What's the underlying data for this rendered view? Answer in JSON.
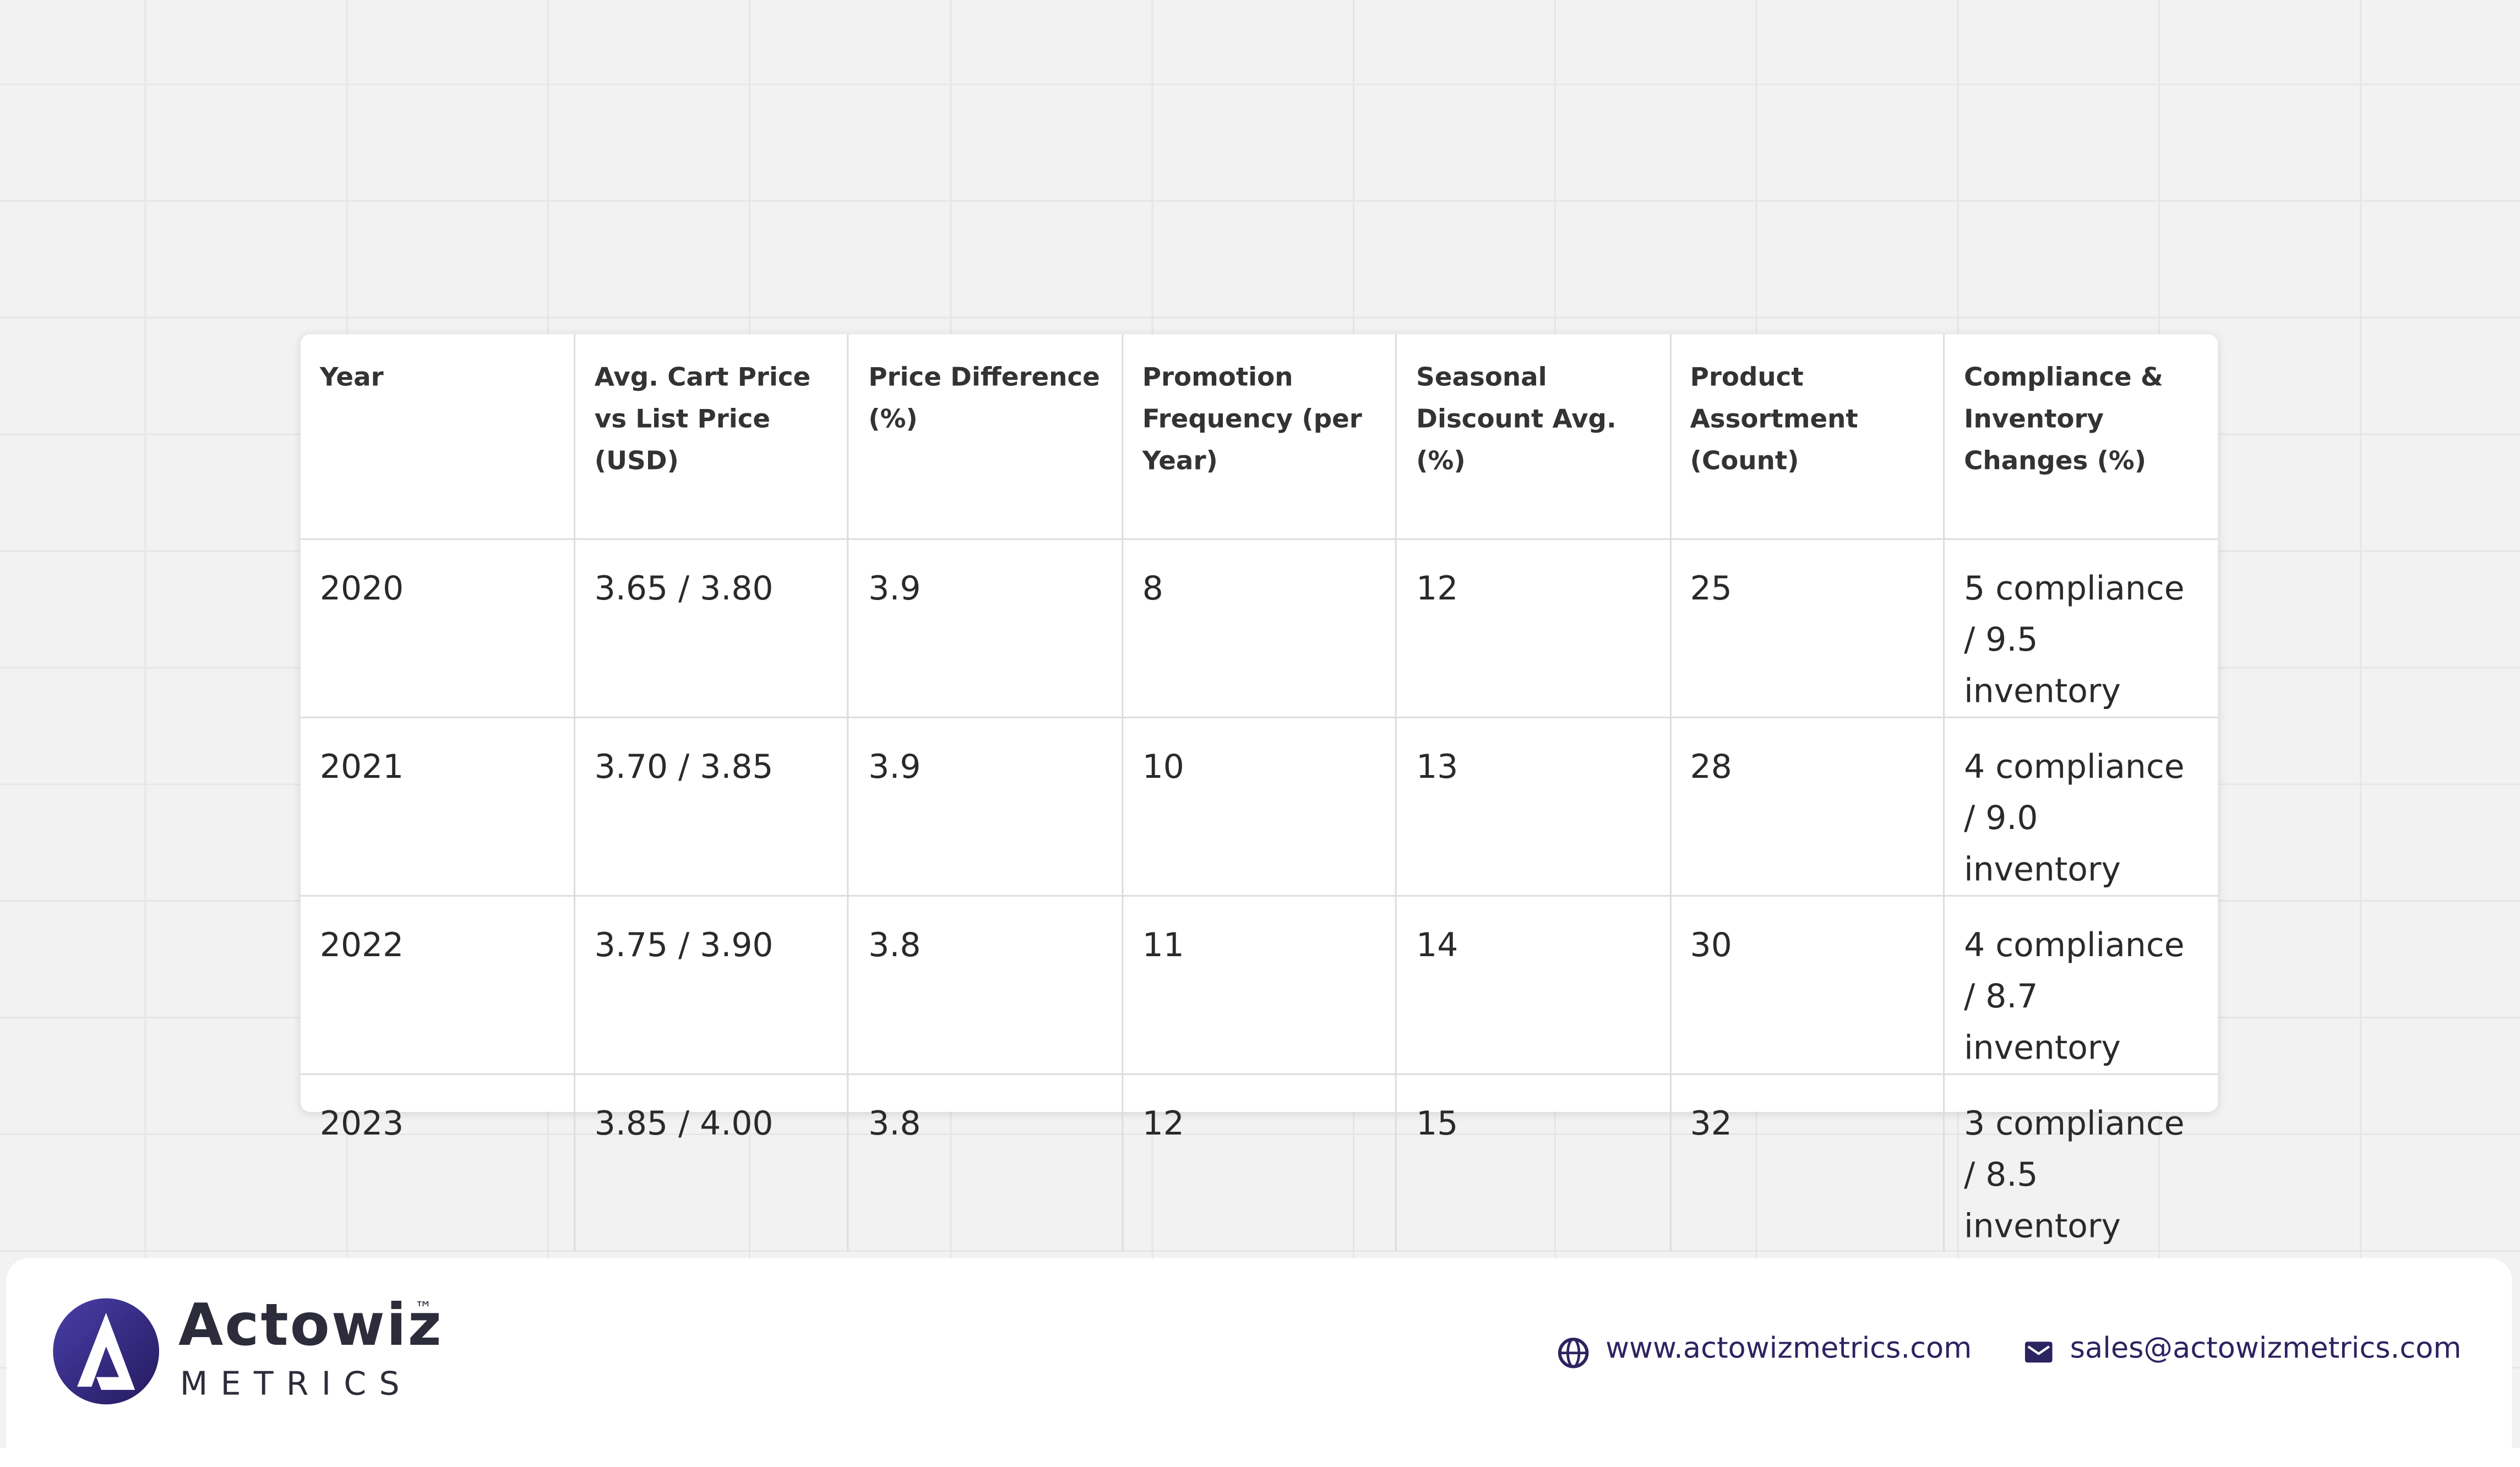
{
  "table": {
    "header": [
      "Year",
      "Avg. Cart Price vs List Price (USD)",
      "Price Difference (%)",
      "Promotion Frequency (per Year)",
      "Seasonal Discount Avg. (%)",
      "Product Assortment (Count)",
      "Compliance & Inventory Changes (%)"
    ],
    "rows": [
      [
        "2020",
        "3.65 / 3.80",
        "3.9",
        "8",
        "12",
        "25",
        "5 compliance / 9.5 inventory"
      ],
      [
        "2021",
        "3.70 / 3.85",
        "3.9",
        "10",
        "13",
        "28",
        "4 compliance / 9.0 inventory"
      ],
      [
        "2022",
        "3.75 / 3.90",
        "3.8",
        "11",
        "14",
        "30",
        "4 compliance / 8.7 inventory"
      ],
      [
        "2023",
        "3.85 / 4.00",
        "3.8",
        "12",
        "15",
        "32",
        "3 compliance / 8.5 inventory"
      ]
    ]
  },
  "footer": {
    "brand": "Actowiz",
    "subbrand": "METRICS",
    "trademark": "™",
    "website": "www.actowizmetrics.com",
    "email": "sales@actowizmetrics.com"
  }
}
